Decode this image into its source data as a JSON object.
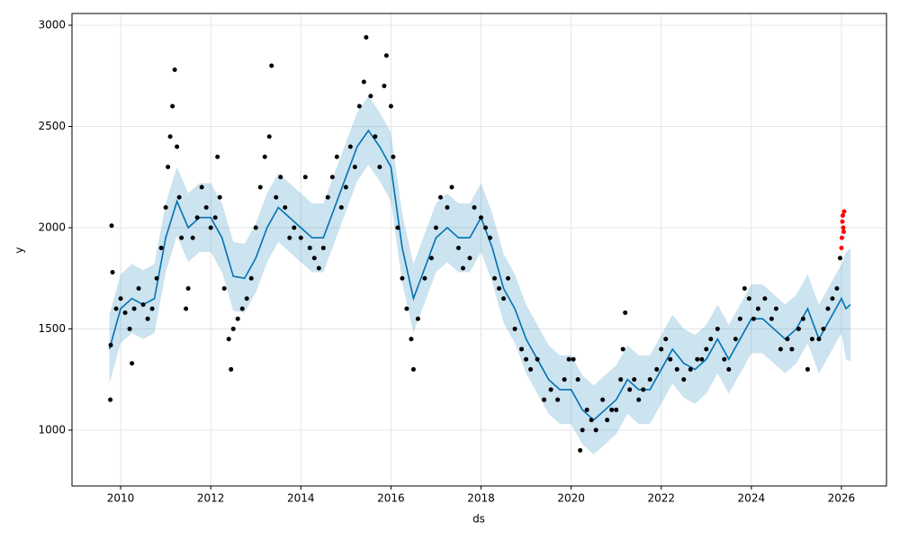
{
  "chart_data": {
    "type": "forecast",
    "xlabel": "ds",
    "ylabel": "y",
    "xlim": [
      2008.92,
      2027.0
    ],
    "ylim": [
      724,
      3058
    ],
    "xticks": [
      2010,
      2012,
      2014,
      2016,
      2018,
      2020,
      2022,
      2024,
      2026
    ],
    "yticks": [
      1000,
      1500,
      2000,
      2500,
      3000
    ],
    "grid": true,
    "band": {
      "color": "#0072b2",
      "x": [
        2009.75,
        2010.0,
        2010.25,
        2010.5,
        2010.75,
        2011.0,
        2011.25,
        2011.5,
        2011.75,
        2012.0,
        2012.25,
        2012.5,
        2012.75,
        2013.0,
        2013.25,
        2013.5,
        2013.75,
        2014.0,
        2014.25,
        2014.5,
        2014.75,
        2015.0,
        2015.25,
        2015.5,
        2015.75,
        2016.0,
        2016.25,
        2016.5,
        2016.75,
        2017.0,
        2017.25,
        2017.5,
        2017.75,
        2018.0,
        2018.25,
        2018.5,
        2018.75,
        2019.0,
        2019.25,
        2019.5,
        2019.75,
        2020.0,
        2020.25,
        2020.5,
        2020.75,
        2021.0,
        2021.25,
        2021.5,
        2021.75,
        2022.0,
        2022.25,
        2022.5,
        2022.75,
        2023.0,
        2023.25,
        2023.5,
        2023.75,
        2024.0,
        2024.25,
        2024.5,
        2024.75,
        2025.0,
        2025.25,
        2025.5,
        2025.75,
        2026.0,
        2026.1,
        2026.2
      ],
      "lower": [
        1230,
        1430,
        1480,
        1450,
        1480,
        1780,
        1960,
        1830,
        1880,
        1880,
        1780,
        1590,
        1580,
        1680,
        1830,
        1930,
        1880,
        1830,
        1780,
        1780,
        1930,
        2080,
        2230,
        2310,
        2230,
        2130,
        1730,
        1480,
        1630,
        1780,
        1830,
        1780,
        1780,
        1880,
        1730,
        1530,
        1430,
        1280,
        1180,
        1080,
        1030,
        1030,
        930,
        880,
        930,
        980,
        1080,
        1030,
        1030,
        1130,
        1230,
        1160,
        1130,
        1180,
        1280,
        1180,
        1280,
        1380,
        1380,
        1330,
        1280,
        1330,
        1430,
        1280,
        1380,
        1480,
        1350,
        1340
      ],
      "upper": [
        1570,
        1770,
        1820,
        1790,
        1820,
        2120,
        2300,
        2170,
        2220,
        2220,
        2120,
        1930,
        1920,
        2020,
        2170,
        2270,
        2220,
        2170,
        2120,
        2120,
        2270,
        2420,
        2570,
        2650,
        2570,
        2470,
        2070,
        1820,
        1970,
        2120,
        2170,
        2120,
        2120,
        2220,
        2070,
        1870,
        1770,
        1620,
        1520,
        1420,
        1370,
        1370,
        1270,
        1220,
        1270,
        1320,
        1420,
        1370,
        1370,
        1470,
        1570,
        1500,
        1470,
        1520,
        1620,
        1520,
        1620,
        1720,
        1720,
        1670,
        1620,
        1670,
        1770,
        1620,
        1720,
        1820,
        1880,
        1900
      ]
    },
    "forecast": {
      "color": "#0072b2",
      "x": [
        2009.75,
        2010.0,
        2010.25,
        2010.5,
        2010.75,
        2011.0,
        2011.25,
        2011.5,
        2011.75,
        2012.0,
        2012.25,
        2012.5,
        2012.75,
        2013.0,
        2013.25,
        2013.5,
        2013.75,
        2014.0,
        2014.25,
        2014.5,
        2014.75,
        2015.0,
        2015.25,
        2015.5,
        2015.75,
        2016.0,
        2016.25,
        2016.5,
        2016.75,
        2017.0,
        2017.25,
        2017.5,
        2017.75,
        2018.0,
        2018.25,
        2018.5,
        2018.75,
        2019.0,
        2019.25,
        2019.5,
        2019.75,
        2020.0,
        2020.25,
        2020.5,
        2020.75,
        2021.0,
        2021.25,
        2021.5,
        2021.75,
        2022.0,
        2022.25,
        2022.5,
        2022.75,
        2023.0,
        2023.25,
        2023.5,
        2023.75,
        2024.0,
        2024.25,
        2024.5,
        2024.75,
        2025.0,
        2025.25,
        2025.5,
        2025.75,
        2026.0,
        2026.1,
        2026.2
      ],
      "values": [
        1400,
        1600,
        1650,
        1620,
        1650,
        1950,
        2130,
        2000,
        2050,
        2050,
        1950,
        1760,
        1750,
        1850,
        2000,
        2100,
        2050,
        2000,
        1950,
        1950,
        2100,
        2250,
        2400,
        2480,
        2400,
        2300,
        1900,
        1650,
        1800,
        1950,
        2000,
        1950,
        1950,
        2050,
        1900,
        1700,
        1600,
        1450,
        1350,
        1250,
        1200,
        1200,
        1100,
        1050,
        1100,
        1150,
        1250,
        1200,
        1200,
        1300,
        1400,
        1330,
        1300,
        1350,
        1450,
        1350,
        1450,
        1550,
        1550,
        1500,
        1450,
        1500,
        1600,
        1450,
        1550,
        1650,
        1600,
        1620
      ]
    },
    "observed": {
      "color": "#000000",
      "x": [
        2009.77,
        2009.78,
        2009.8,
        2009.82,
        2009.9,
        2010.0,
        2010.1,
        2010.2,
        2010.25,
        2010.3,
        2010.4,
        2010.5,
        2010.6,
        2010.7,
        2010.8,
        2010.9,
        2011.0,
        2011.05,
        2011.1,
        2011.15,
        2011.2,
        2011.25,
        2011.3,
        2011.35,
        2011.45,
        2011.5,
        2011.6,
        2011.7,
        2011.8,
        2011.9,
        2012.0,
        2012.1,
        2012.15,
        2012.2,
        2012.3,
        2012.4,
        2012.45,
        2012.5,
        2012.6,
        2012.7,
        2012.8,
        2012.9,
        2013.0,
        2013.1,
        2013.2,
        2013.3,
        2013.35,
        2013.45,
        2013.55,
        2013.65,
        2013.75,
        2013.85,
        2014.0,
        2014.1,
        2014.2,
        2014.3,
        2014.4,
        2014.5,
        2014.6,
        2014.7,
        2014.8,
        2014.9,
        2015.0,
        2015.1,
        2015.2,
        2015.3,
        2015.4,
        2015.45,
        2015.55,
        2015.65,
        2015.75,
        2015.85,
        2015.9,
        2016.0,
        2016.05,
        2016.15,
        2016.25,
        2016.35,
        2016.45,
        2016.5,
        2016.6,
        2016.75,
        2016.9,
        2017.0,
        2017.1,
        2017.25,
        2017.35,
        2017.5,
        2017.6,
        2017.75,
        2017.85,
        2018.0,
        2018.1,
        2018.2,
        2018.3,
        2018.4,
        2018.5,
        2018.6,
        2018.75,
        2018.9,
        2019.0,
        2019.1,
        2019.25,
        2019.4,
        2019.55,
        2019.7,
        2019.85,
        2019.95,
        2020.05,
        2020.15,
        2020.2,
        2020.25,
        2020.35,
        2020.45,
        2020.55,
        2020.7,
        2020.8,
        2020.9,
        2021.0,
        2021.1,
        2021.15,
        2021.2,
        2021.3,
        2021.4,
        2021.5,
        2021.6,
        2021.75,
        2021.9,
        2022.0,
        2022.1,
        2022.2,
        2022.35,
        2022.5,
        2022.65,
        2022.8,
        2022.9,
        2023.0,
        2023.1,
        2023.25,
        2023.4,
        2023.5,
        2023.65,
        2023.75,
        2023.85,
        2023.95,
        2024.05,
        2024.15,
        2024.3,
        2024.45,
        2024.55,
        2024.65,
        2024.8,
        2024.9,
        2025.05,
        2025.15,
        2025.25,
        2025.35,
        2025.5,
        2025.6,
        2025.7,
        2025.8,
        2025.9,
        2025.97
      ],
      "values": [
        1150,
        1420,
        2010,
        1780,
        1600,
        1650,
        1580,
        1500,
        1330,
        1600,
        1700,
        1620,
        1550,
        1600,
        1750,
        1900,
        2100,
        2300,
        2450,
        2600,
        2780,
        2400,
        2150,
        1950,
        1600,
        1700,
        1950,
        2050,
        2200,
        2100,
        2000,
        2050,
        2350,
        2150,
        1700,
        1450,
        1300,
        1500,
        1550,
        1600,
        1650,
        1750,
        2000,
        2200,
        2350,
        2450,
        2800,
        2150,
        2250,
        2100,
        1950,
        2000,
        1950,
        2250,
        1900,
        1850,
        1800,
        1900,
        2150,
        2250,
        2350,
        2100,
        2200,
        2400,
        2300,
        2600,
        2720,
        2940,
        2650,
        2450,
        2300,
        2700,
        2850,
        2600,
        2350,
        2000,
        1750,
        1600,
        1450,
        1300,
        1550,
        1750,
        1850,
        2000,
        2150,
        2100,
        2200,
        1900,
        1800,
        1850,
        2100,
        2050,
        2000,
        1950,
        1750,
        1700,
        1650,
        1750,
        1500,
        1400,
        1350,
        1300,
        1350,
        1150,
        1200,
        1150,
        1250,
        1350,
        1350,
        1250,
        900,
        1000,
        1100,
        1050,
        1000,
        1150,
        1050,
        1100,
        1100,
        1250,
        1400,
        1580,
        1200,
        1250,
        1150,
        1200,
        1250,
        1300,
        1400,
        1450,
        1350,
        1300,
        1250,
        1300,
        1350,
        1350,
        1400,
        1450,
        1500,
        1350,
        1300,
        1450,
        1550,
        1700,
        1650,
        1550,
        1600,
        1650,
        1550,
        1600,
        1400,
        1450,
        1400,
        1500,
        1550,
        1300,
        1450,
        1450,
        1500,
        1600,
        1650,
        1700,
        1850
      ]
    },
    "test": {
      "color": "#ff0000",
      "x": [
        2026.0,
        2026.01,
        2026.02,
        2026.03,
        2026.04,
        2026.05,
        2026.06
      ],
      "values": [
        1900,
        1950,
        2030,
        2060,
        2000,
        1980,
        2080
      ]
    }
  }
}
